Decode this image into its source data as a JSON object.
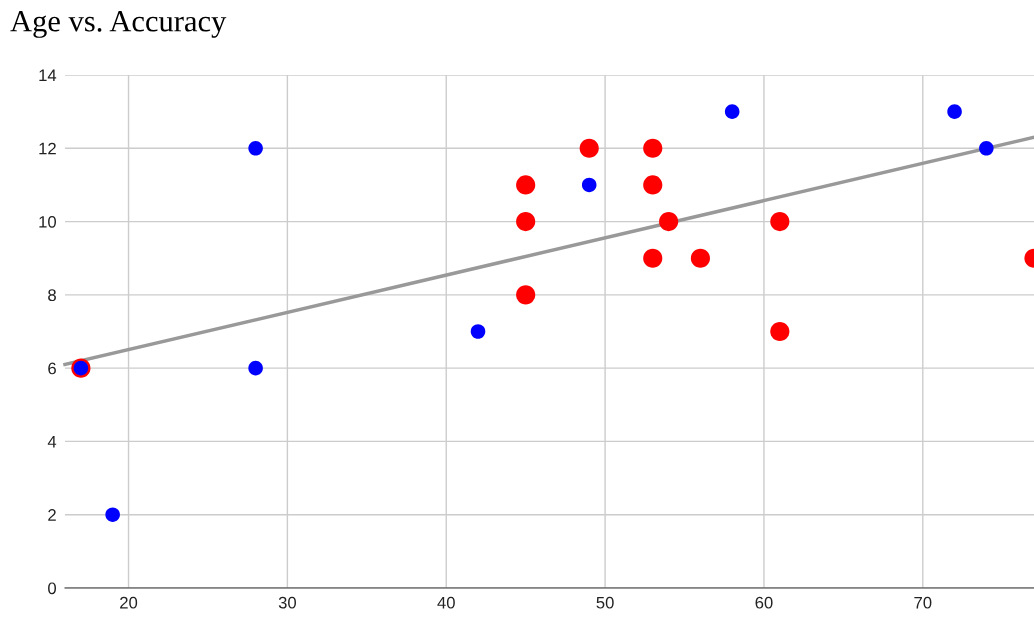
{
  "chart_data": {
    "type": "scatter",
    "title": "Age vs. Accuracy",
    "xlim": [
      16,
      77
    ],
    "xticks": [
      20,
      30,
      40,
      50,
      60,
      70
    ],
    "ylim": [
      0,
      14
    ],
    "yticks": [
      0,
      2,
      4,
      6,
      8,
      10,
      12,
      14
    ],
    "grid": true,
    "series": [
      {
        "color": "#ff0000",
        "marker": "circle",
        "x": [
          17,
          45,
          45,
          45,
          49,
          53,
          53,
          53,
          54,
          56,
          61,
          61,
          77
        ],
        "values": [
          6,
          11,
          10,
          8,
          12,
          12,
          11,
          9,
          10,
          9,
          10,
          7,
          9
        ]
      },
      {
        "color": "#0000ff",
        "marker": "circle",
        "x": [
          17,
          19,
          28,
          28,
          42,
          49,
          58,
          72,
          74
        ],
        "values": [
          6,
          2,
          12,
          6,
          7,
          11,
          13,
          13,
          12
        ]
      },
      {
        "type": "line",
        "color": "#999999",
        "x": [
          16,
          77
        ],
        "values": [
          6.1,
          12.3
        ]
      }
    ]
  }
}
